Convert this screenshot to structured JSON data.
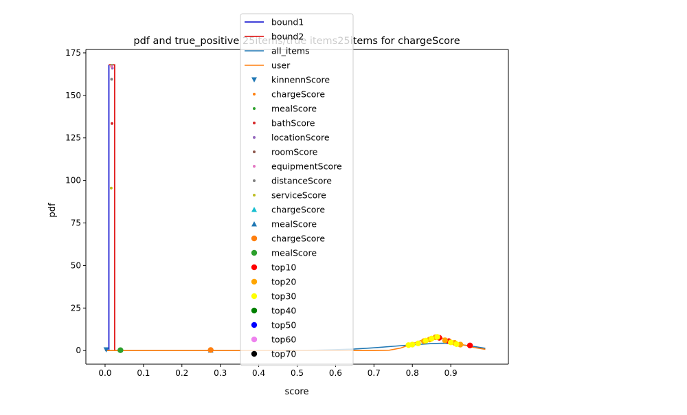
{
  "chart_data": {
    "type": "line",
    "title": "pdf and true_positive 25items/true items25items for chargeScore",
    "xlabel": "score",
    "ylabel": "pdf",
    "xlim": [
      -0.05,
      1.05
    ],
    "ylim": [
      -8,
      177
    ],
    "xticks": [
      0.0,
      0.1,
      0.2,
      0.3,
      0.4,
      0.5,
      0.6,
      0.7,
      0.8,
      0.9
    ],
    "xtick_labels": [
      "0.0",
      "0.1",
      "0.2",
      "0.3",
      "0.4",
      "0.5",
      "0.6",
      "0.7",
      "0.8",
      "0.9"
    ],
    "yticks": [
      0,
      25,
      50,
      75,
      100,
      125,
      150,
      175
    ],
    "ytick_labels": [
      "0",
      "25",
      "50",
      "75",
      "100",
      "125",
      "150",
      "175"
    ],
    "grid": false,
    "legend_placement": "top-center",
    "bounds": [
      {
        "name": "bound1",
        "color": "#0000cc",
        "x": [
          0.0,
          0.01,
          0.01
        ],
        "y": [
          0,
          0,
          168
        ]
      },
      {
        "name": "bound2",
        "color": "#dd0000",
        "x": [
          0.01,
          0.025,
          0.025
        ],
        "y": [
          168,
          168,
          0
        ]
      }
    ],
    "lines": [
      {
        "name": "all_items",
        "color": "#1f77b4",
        "x": [
          0.0,
          0.1,
          0.2,
          0.3,
          0.4,
          0.5,
          0.55,
          0.6,
          0.65,
          0.7,
          0.75,
          0.8,
          0.85,
          0.88,
          0.9,
          0.95,
          0.99
        ],
        "y": [
          0,
          0,
          0,
          0,
          0,
          0.1,
          0.2,
          0.5,
          0.9,
          1.6,
          2.5,
          3.4,
          4.1,
          4.3,
          4.1,
          2.8,
          1.3
        ]
      },
      {
        "name": "user",
        "color": "#ff7f0e",
        "x": [
          0.0,
          0.1,
          0.2,
          0.3,
          0.4,
          0.5,
          0.6,
          0.7,
          0.74,
          0.77,
          0.8,
          0.83,
          0.86,
          0.88,
          0.9,
          0.93,
          0.96,
          0.99
        ],
        "y": [
          0,
          0,
          0,
          0,
          0,
          0,
          0,
          0,
          0.2,
          1.5,
          4.0,
          6.5,
          7.8,
          7.2,
          5.5,
          3.5,
          1.8,
          0.7
        ]
      }
    ],
    "scatter_series": [
      {
        "name": "kinnennScore",
        "color": "#1f77b4",
        "marker": "triangle-down",
        "points": [
          [
            0.003,
            0.5
          ]
        ]
      },
      {
        "name": "chargeScore",
        "color": "#ff7f0e",
        "marker": "dot",
        "points": [
          [
            0.017,
            167
          ]
        ]
      },
      {
        "name": "mealScore",
        "color": "#2ca02c",
        "marker": "dot",
        "points": [
          [
            0.018,
            167.5
          ]
        ]
      },
      {
        "name": "bathScore",
        "color": "#d62728",
        "marker": "dot",
        "points": [
          [
            0.018,
            133.5
          ]
        ]
      },
      {
        "name": "locationScore",
        "color": "#9467bd",
        "marker": "dot",
        "points": [
          [
            0.019,
            166
          ]
        ]
      },
      {
        "name": "roomScore",
        "color": "#8c564b",
        "marker": "dot",
        "points": [
          [
            0.018,
            167
          ]
        ]
      },
      {
        "name": "equipmentScore",
        "color": "#e377c2",
        "marker": "dot",
        "points": [
          [
            0.018,
            167
          ]
        ]
      },
      {
        "name": "distanceScore",
        "color": "#7f7f7f",
        "marker": "dot",
        "points": [
          [
            0.017,
            159.5
          ]
        ]
      },
      {
        "name": "serviceScore",
        "color": "#bcbd22",
        "marker": "dot",
        "points": [
          [
            0.016,
            95.5
          ]
        ]
      },
      {
        "name": "chargeScore",
        "color": "#17becf",
        "marker": "triangle-up",
        "points": []
      },
      {
        "name": "mealScore",
        "color": "#1f77b4",
        "marker": "triangle-up",
        "points": [
          [
            0.275,
            0.2
          ]
        ]
      },
      {
        "name": "chargeScore",
        "color": "#ff7f0e",
        "marker": "circle",
        "points": [
          [
            0.275,
            0.3
          ]
        ]
      },
      {
        "name": "mealScore",
        "color": "#2ca02c",
        "marker": "circle",
        "points": [
          [
            0.04,
            0.2
          ]
        ]
      },
      {
        "name": "top10",
        "color": "#ff0000",
        "marker": "circle",
        "points": [
          [
            0.87,
            7.5
          ],
          [
            0.895,
            5.5
          ],
          [
            0.95,
            3.0
          ]
        ]
      },
      {
        "name": "top20",
        "color": "#ffa500",
        "marker": "circle",
        "points": [
          [
            0.83,
            5.5
          ],
          [
            0.845,
            6.5
          ],
          [
            0.86,
            7.8
          ],
          [
            0.885,
            6.0
          ],
          [
            0.91,
            4.5
          ],
          [
            0.925,
            3.5
          ]
        ]
      },
      {
        "name": "top30",
        "color": "#ffff00",
        "marker": "circle",
        "points": [
          [
            0.79,
            3.2
          ],
          [
            0.8,
            3.5
          ],
          [
            0.815,
            4.2
          ],
          [
            0.835,
            5.8
          ],
          [
            0.85,
            7.0
          ],
          [
            0.865,
            8.0
          ],
          [
            0.9,
            4.8
          ],
          [
            0.915,
            3.8
          ]
        ]
      },
      {
        "name": "top40",
        "color": "#008000",
        "marker": "circle",
        "points": []
      },
      {
        "name": "top50",
        "color": "#0000ff",
        "marker": "circle",
        "points": []
      },
      {
        "name": "top60",
        "color": "#ee82ee",
        "marker": "circle",
        "points": []
      },
      {
        "name": "top70",
        "color": "#000000",
        "marker": "circle",
        "points": []
      }
    ]
  }
}
